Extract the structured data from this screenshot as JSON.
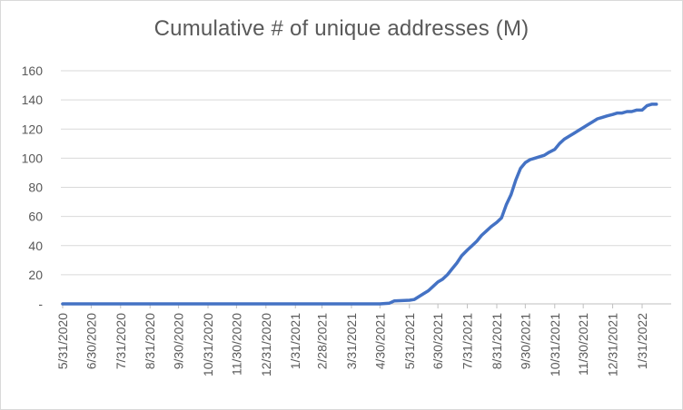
{
  "chart_data": {
    "type": "line",
    "title": "Cumulative # of unique addresses (M)",
    "xlabel": "",
    "ylabel": "",
    "ylim": [
      0,
      160
    ],
    "y_ticks": [
      0,
      20,
      40,
      60,
      80,
      100,
      120,
      140,
      160
    ],
    "y_tick_labels": [
      "-",
      "20",
      "40",
      "60",
      "80",
      "100",
      "120",
      "140",
      "160"
    ],
    "x_tick_labels": [
      "5/31/2020",
      "6/30/2020",
      "7/31/2020",
      "8/31/2020",
      "9/30/2020",
      "10/31/2020",
      "11/30/2020",
      "12/31/2020",
      "1/31/2021",
      "2/28/2021",
      "3/31/2021",
      "4/30/2021",
      "5/31/2021",
      "6/30/2021",
      "7/31/2021",
      "8/31/2021",
      "9/30/2021",
      "10/31/2021",
      "11/30/2021",
      "12/31/2021",
      "1/31/2022"
    ],
    "grid": true,
    "legend": "none",
    "color": "#4472C4",
    "series": [
      {
        "x": [
          "2020-05-31",
          "2020-09-30",
          "2021-01-31",
          "2021-04-30",
          "2021-05-10",
          "2021-05-15",
          "2021-05-31",
          "2021-06-05",
          "2021-06-10",
          "2021-06-15",
          "2021-06-20",
          "2021-06-25",
          "2021-06-30",
          "2021-07-05",
          "2021-07-10",
          "2021-07-15",
          "2021-07-20",
          "2021-07-25",
          "2021-07-31",
          "2021-08-05",
          "2021-08-10",
          "2021-08-15",
          "2021-08-20",
          "2021-08-25",
          "2021-08-31",
          "2021-09-05",
          "2021-09-10",
          "2021-09-15",
          "2021-09-20",
          "2021-09-25",
          "2021-09-30",
          "2021-10-05",
          "2021-10-10",
          "2021-10-15",
          "2021-10-20",
          "2021-10-25",
          "2021-10-31",
          "2021-11-05",
          "2021-11-10",
          "2021-11-15",
          "2021-11-20",
          "2021-11-25",
          "2021-11-30",
          "2021-12-05",
          "2021-12-10",
          "2021-12-15",
          "2021-12-20",
          "2021-12-25",
          "2021-12-31",
          "2022-01-05",
          "2022-01-10",
          "2022-01-15",
          "2022-01-20",
          "2022-01-25",
          "2022-01-31",
          "2022-02-05",
          "2022-02-10",
          "2022-02-15"
        ],
        "y": [
          0,
          0,
          0,
          0,
          0.5,
          2,
          2.5,
          3,
          5,
          7,
          9,
          12,
          15,
          17,
          20,
          24,
          28,
          33,
          37,
          40,
          43,
          47,
          50,
          53,
          56,
          59,
          68,
          75,
          85,
          93,
          97,
          99,
          100,
          101,
          102,
          104,
          106,
          110,
          113,
          115,
          117,
          119,
          121,
          123,
          125,
          127,
          128,
          129,
          130,
          131,
          131,
          132,
          132,
          133,
          133,
          136,
          137,
          137
        ]
      }
    ]
  }
}
